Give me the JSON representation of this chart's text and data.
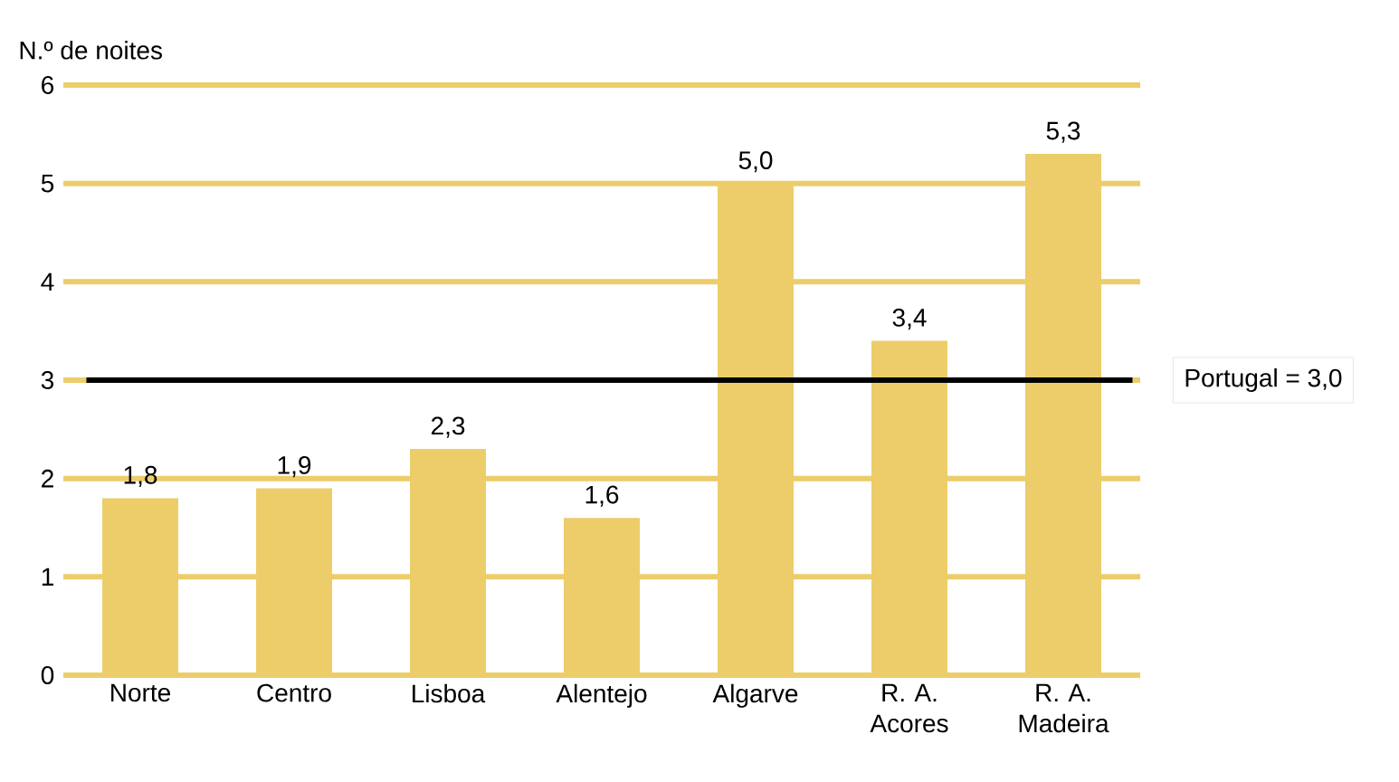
{
  "chart_data": {
    "type": "bar",
    "ylabel": "N.º de noites",
    "categories": [
      "Norte",
      "Centro",
      "Lisboa",
      "Alentejo",
      "Algarve",
      "R. A. Acores",
      "R. A. Madeira"
    ],
    "values": [
      1.8,
      1.9,
      2.3,
      1.6,
      5.0,
      3.4,
      5.3
    ],
    "value_labels": [
      "1,8",
      "1,9",
      "2,3",
      "1,6",
      "5,0",
      "3,4",
      "5,3"
    ],
    "color": "#eccd6a",
    "ylim": [
      0,
      6
    ],
    "yticks": [
      0,
      1,
      2,
      3,
      4,
      5,
      6
    ],
    "grid": "y",
    "ref_lines": [
      {
        "axis": "y",
        "value": 3,
        "label": "Portugal = 3,0",
        "color": "#000000"
      }
    ]
  }
}
